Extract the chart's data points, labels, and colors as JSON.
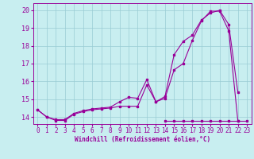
{
  "xlabel": "Windchill (Refroidissement éolien,°C)",
  "background_color": "#c8eef0",
  "grid_color": "#99ccd4",
  "line_color": "#990099",
  "x_ticks": [
    0,
    1,
    2,
    3,
    4,
    5,
    6,
    7,
    8,
    9,
    10,
    11,
    12,
    13,
    14,
    15,
    16,
    17,
    18,
    19,
    20,
    21,
    22,
    23
  ],
  "y_ticks": [
    14,
    15,
    16,
    17,
    18,
    19,
    20
  ],
  "ylim": [
    13.6,
    20.4
  ],
  "xlim": [
    -0.5,
    23.5
  ],
  "line1": [
    14.4,
    14.0,
    13.8,
    13.8,
    14.15,
    14.3,
    14.4,
    14.45,
    14.5,
    14.6,
    14.6,
    14.6,
    15.8,
    14.85,
    15.05,
    16.65,
    17.0,
    18.3,
    19.4,
    19.95,
    19.95,
    18.85,
    13.8,
    null
  ],
  "line2": [
    14.4,
    14.0,
    13.85,
    13.85,
    14.2,
    14.35,
    14.45,
    14.5,
    14.55,
    14.85,
    15.1,
    15.05,
    16.1,
    14.85,
    15.15,
    17.5,
    18.25,
    18.6,
    19.45,
    19.85,
    20.0,
    19.2,
    15.4,
    null
  ],
  "line3": [
    null,
    null,
    null,
    null,
    null,
    null,
    null,
    null,
    null,
    null,
    null,
    null,
    null,
    null,
    13.8,
    13.8,
    13.8,
    13.8,
    13.8,
    13.8,
    13.8,
    13.8,
    13.8,
    13.8
  ],
  "tick_fontsize": 5.5,
  "xlabel_fontsize": 5.5,
  "marker_size": 2.0,
  "line_width": 0.8
}
